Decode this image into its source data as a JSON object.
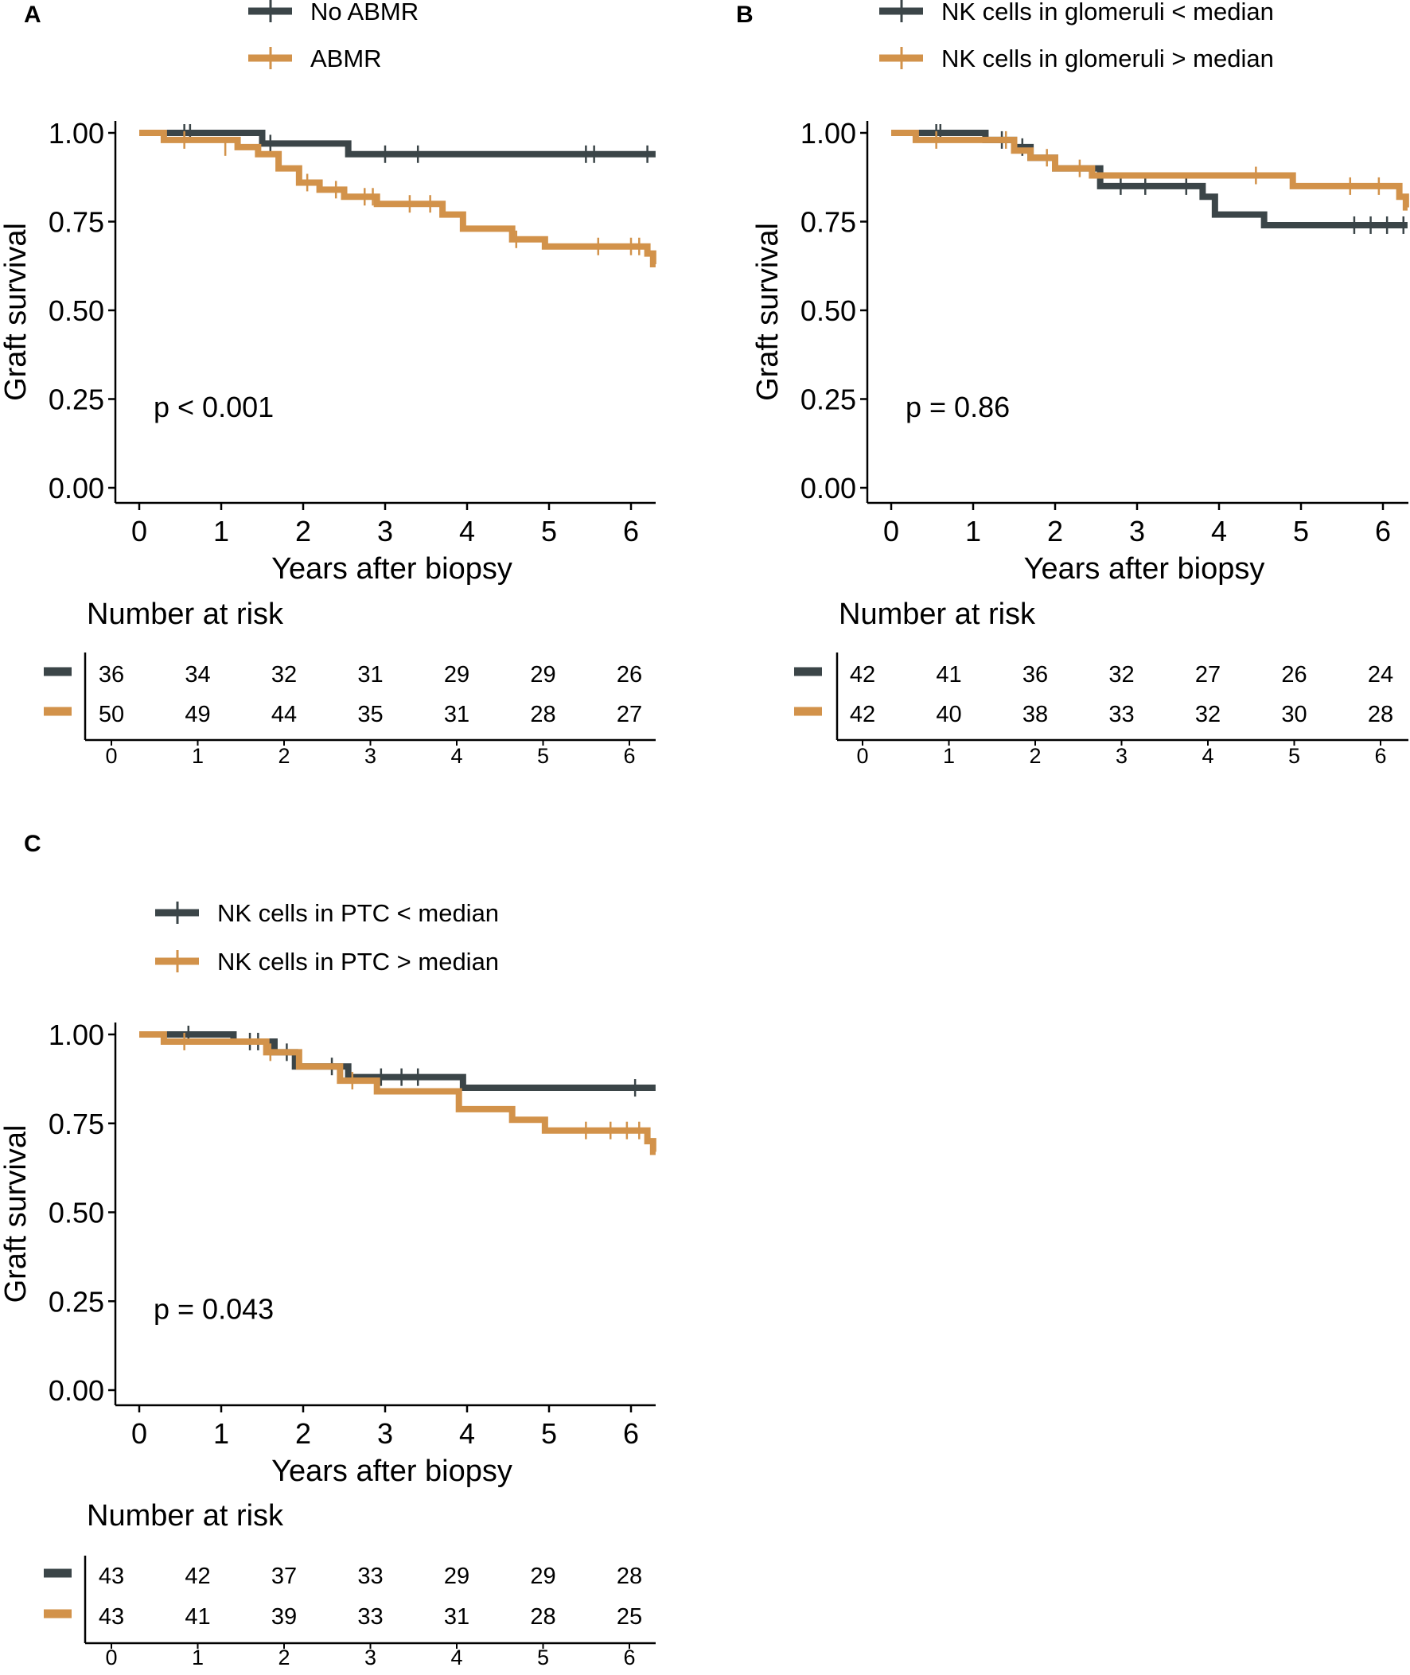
{
  "figure": {
    "colors": {
      "group1": "#3b4548",
      "group2": "#d2924a",
      "axis": "#000000"
    },
    "common": {
      "ylabel": "Graft survival",
      "xlabel": "Years after biopsy",
      "risk_title": "Number at risk",
      "y_ticks": [
        "0.00",
        "0.25",
        "0.50",
        "0.75",
        "1.00"
      ],
      "x_ticks": [
        "0",
        "1",
        "2",
        "3",
        "4",
        "5",
        "6"
      ]
    }
  },
  "chart_data": [
    {
      "panel": "A",
      "type": "line",
      "subtype": "kaplan-meier",
      "xlim": [
        0,
        6.3
      ],
      "ylim": [
        0,
        1
      ],
      "pvalue": "p < 0.001",
      "series": [
        {
          "name": "No ABMR",
          "steps": [
            [
              0,
              1.0
            ],
            [
              1.5,
              0.97
            ],
            [
              2.55,
              0.94
            ],
            [
              6.3,
              0.94
            ]
          ],
          "censor": [
            [
              0.55,
              1.0
            ],
            [
              0.62,
              1.0
            ],
            [
              1.6,
              0.97
            ],
            [
              3.0,
              0.94
            ],
            [
              3.4,
              0.94
            ],
            [
              5.45,
              0.94
            ],
            [
              5.55,
              0.94
            ],
            [
              6.2,
              0.94
            ]
          ]
        },
        {
          "name": "ABMR",
          "steps": [
            [
              0,
              1.0
            ],
            [
              0.3,
              0.98
            ],
            [
              1.2,
              0.96
            ],
            [
              1.45,
              0.94
            ],
            [
              1.7,
              0.9
            ],
            [
              1.95,
              0.86
            ],
            [
              2.2,
              0.84
            ],
            [
              2.5,
              0.82
            ],
            [
              2.9,
              0.8
            ],
            [
              3.7,
              0.77
            ],
            [
              3.95,
              0.73
            ],
            [
              4.55,
              0.7
            ],
            [
              4.95,
              0.68
            ],
            [
              6.2,
              0.66
            ],
            [
              6.27,
              0.63
            ],
            [
              6.3,
              0.63
            ]
          ],
          "censor": [
            [
              0.55,
              0.98
            ],
            [
              1.05,
              0.96
            ],
            [
              2.05,
              0.86
            ],
            [
              2.4,
              0.84
            ],
            [
              2.75,
              0.82
            ],
            [
              2.85,
              0.82
            ],
            [
              3.3,
              0.8
            ],
            [
              3.55,
              0.8
            ],
            [
              4.6,
              0.7
            ],
            [
              5.6,
              0.68
            ],
            [
              6.0,
              0.68
            ],
            [
              6.1,
              0.68
            ]
          ]
        }
      ],
      "at_risk": {
        "times": [
          0,
          1,
          2,
          3,
          4,
          5,
          6
        ],
        "rows": [
          [
            "36",
            "34",
            "32",
            "31",
            "29",
            "29",
            "26"
          ],
          [
            "50",
            "49",
            "44",
            "35",
            "31",
            "28",
            "27"
          ]
        ]
      }
    },
    {
      "panel": "B",
      "type": "line",
      "subtype": "kaplan-meier",
      "xlim": [
        0,
        6.3
      ],
      "ylim": [
        0,
        1
      ],
      "pvalue": "p = 0.86",
      "series": [
        {
          "name": "NK cells in glomeruli < median",
          "steps": [
            [
              0,
              1.0
            ],
            [
              1.15,
              0.98
            ],
            [
              1.5,
              0.96
            ],
            [
              1.7,
              0.93
            ],
            [
              2.0,
              0.9
            ],
            [
              2.55,
              0.85
            ],
            [
              3.8,
              0.82
            ],
            [
              3.95,
              0.77
            ],
            [
              4.55,
              0.74
            ],
            [
              6.3,
              0.74
            ]
          ],
          "censor": [
            [
              0.55,
              1.0
            ],
            [
              0.6,
              1.0
            ],
            [
              1.35,
              0.98
            ],
            [
              1.6,
              0.96
            ],
            [
              2.8,
              0.85
            ],
            [
              3.1,
              0.85
            ],
            [
              3.6,
              0.85
            ],
            [
              5.65,
              0.74
            ],
            [
              5.85,
              0.74
            ],
            [
              6.05,
              0.74
            ],
            [
              6.25,
              0.74
            ]
          ]
        },
        {
          "name": "NK cells in glomeruli > median",
          "steps": [
            [
              0,
              1.0
            ],
            [
              0.3,
              0.98
            ],
            [
              1.5,
              0.95
            ],
            [
              1.7,
              0.93
            ],
            [
              2.0,
              0.9
            ],
            [
              2.45,
              0.88
            ],
            [
              4.9,
              0.85
            ],
            [
              6.2,
              0.82
            ],
            [
              6.28,
              0.79
            ],
            [
              6.3,
              0.79
            ]
          ],
          "censor": [
            [
              0.55,
              0.98
            ],
            [
              1.4,
              0.98
            ],
            [
              1.9,
              0.93
            ],
            [
              2.3,
              0.9
            ],
            [
              4.45,
              0.88
            ],
            [
              5.6,
              0.85
            ],
            [
              5.95,
              0.85
            ]
          ]
        }
      ],
      "at_risk": {
        "times": [
          0,
          1,
          2,
          3,
          4,
          5,
          6
        ],
        "rows": [
          [
            "42",
            "41",
            "36",
            "32",
            "27",
            "26",
            "24"
          ],
          [
            "42",
            "40",
            "38",
            "33",
            "32",
            "30",
            "28"
          ]
        ]
      }
    },
    {
      "panel": "C",
      "type": "line",
      "subtype": "kaplan-meier",
      "xlim": [
        0,
        6.3
      ],
      "ylim": [
        0,
        1
      ],
      "pvalue": "p = 0.043",
      "series": [
        {
          "name": "NK cells in PTC < median",
          "steps": [
            [
              0,
              1.0
            ],
            [
              1.15,
              0.98
            ],
            [
              1.65,
              0.95
            ],
            [
              1.9,
              0.91
            ],
            [
              2.55,
              0.88
            ],
            [
              3.95,
              0.85
            ],
            [
              6.3,
              0.85
            ]
          ],
          "censor": [
            [
              0.6,
              1.0
            ],
            [
              1.35,
              0.98
            ],
            [
              1.45,
              0.98
            ],
            [
              1.8,
              0.95
            ],
            [
              2.35,
              0.91
            ],
            [
              2.95,
              0.88
            ],
            [
              3.2,
              0.88
            ],
            [
              3.4,
              0.88
            ],
            [
              6.05,
              0.85
            ]
          ]
        },
        {
          "name": "NK cells in PTC > median",
          "steps": [
            [
              0,
              1.0
            ],
            [
              0.3,
              0.98
            ],
            [
              1.55,
              0.95
            ],
            [
              1.95,
              0.91
            ],
            [
              2.45,
              0.87
            ],
            [
              2.9,
              0.84
            ],
            [
              3.9,
              0.79
            ],
            [
              4.55,
              0.76
            ],
            [
              4.95,
              0.73
            ],
            [
              6.2,
              0.7
            ],
            [
              6.27,
              0.67
            ],
            [
              6.3,
              0.67
            ]
          ],
          "censor": [
            [
              0.55,
              0.98
            ],
            [
              1.6,
              0.95
            ],
            [
              2.6,
              0.87
            ],
            [
              5.45,
              0.73
            ],
            [
              5.75,
              0.73
            ],
            [
              5.95,
              0.73
            ],
            [
              6.1,
              0.73
            ]
          ]
        }
      ],
      "at_risk": {
        "times": [
          0,
          1,
          2,
          3,
          4,
          5,
          6
        ],
        "rows": [
          [
            "43",
            "42",
            "37",
            "33",
            "29",
            "29",
            "28"
          ],
          [
            "43",
            "41",
            "39",
            "33",
            "31",
            "28",
            "25"
          ]
        ]
      }
    }
  ]
}
